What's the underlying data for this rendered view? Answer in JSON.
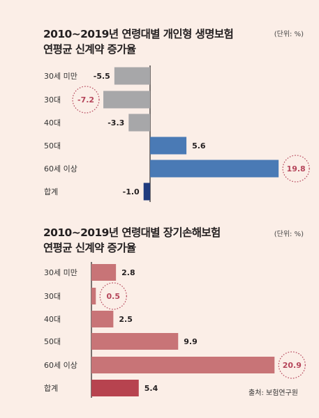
{
  "chart_data": [
    {
      "type": "bar",
      "orientation": "horizontal",
      "title": "2010~2019년 연령대별 개인형 생명보험\n연평균 신계약 증가율",
      "unit": "(단위: %)",
      "categories": [
        "30세 미만",
        "30대",
        "40대",
        "50대",
        "60세 이상",
        "합계"
      ],
      "values": [
        -5.5,
        -7.2,
        -3.3,
        5.6,
        19.8,
        -1.0
      ],
      "value_labels": [
        "-5.5",
        "-7.2",
        "-3.3",
        "5.6",
        "19.8",
        "-1.0"
      ],
      "highlighted": [
        "30대",
        "60세 이상"
      ],
      "colors": {
        "negative": "#a7a7a9",
        "positive": "#4a7ab5",
        "total": "#1f3b7e",
        "highlight_text": "#b5455a",
        "axis": "#231f20"
      }
    },
    {
      "type": "bar",
      "orientation": "horizontal",
      "title": "2010~2019년 연령대별 장기손해보험\n연평균 신계약 증가율",
      "unit": "(단위: %)",
      "categories": [
        "30세 미만",
        "30대",
        "40대",
        "50대",
        "60세 이상",
        "합계"
      ],
      "values": [
        2.8,
        0.5,
        2.5,
        9.9,
        20.9,
        5.4
      ],
      "value_labels": [
        "2.8",
        "0.5",
        "2.5",
        "9.9",
        "20.9",
        "5.4"
      ],
      "highlighted": [
        "30대",
        "60세 이상"
      ],
      "colors": {
        "bar": "#c87477",
        "total": "#b7434f",
        "highlight_text": "#b5455a",
        "axis": "#231f20"
      }
    }
  ],
  "source": "출처: 보험연구원"
}
